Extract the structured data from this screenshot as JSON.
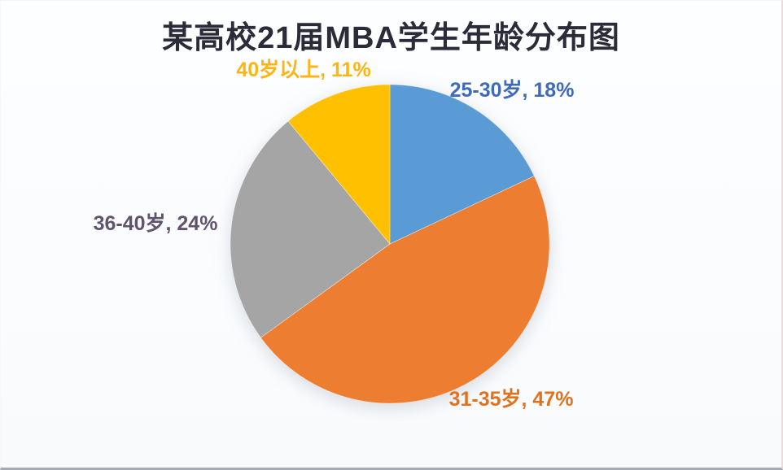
{
  "page": {
    "background": "#fbfdfe",
    "bottom_edge_color": "#a6abb3"
  },
  "chart_data": {
    "type": "pie",
    "title": "某高校21届MBA学生年龄分布图",
    "title_color": "#2b2b3a",
    "start_angle_deg": 0,
    "direction": "clockwise",
    "legend_position": "none",
    "unit": "%",
    "categories": [
      "25-30岁",
      "31-35岁",
      "36-40岁",
      "40岁以上"
    ],
    "values": [
      18,
      47,
      24,
      11
    ],
    "slices": [
      {
        "id": "25-30",
        "label": "25-30岁",
        "value": 18,
        "display": "25-30岁, 18%",
        "color": "#5b9bd5",
        "label_color": "#3f6ab8"
      },
      {
        "id": "31-35",
        "label": "31-35岁",
        "value": 47,
        "display": "31-35岁, 47%",
        "color": "#ed7d31",
        "label_color": "#e2711d"
      },
      {
        "id": "36-40",
        "label": "36-40岁",
        "value": 24,
        "display": "36-40岁, 24%",
        "color": "#a5a5a5",
        "label_color": "#61536e"
      },
      {
        "id": "40plus",
        "label": "40岁以上",
        "value": 11,
        "display": "40岁以上, 11%",
        "color": "#ffc000",
        "label_color": "#fcb511"
      }
    ]
  }
}
